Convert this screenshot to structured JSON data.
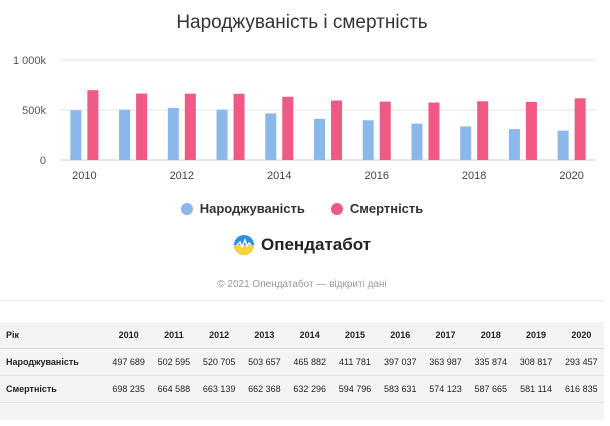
{
  "chart_data": {
    "type": "bar",
    "title": "Народжуваність і смертність",
    "categories": [
      "2010",
      "2011",
      "2012",
      "2013",
      "2014",
      "2015",
      "2016",
      "2017",
      "2018",
      "2019",
      "2020"
    ],
    "x_tick_labels": [
      "2010",
      "2012",
      "2014",
      "2016",
      "2018",
      "2020"
    ],
    "series": [
      {
        "name": "Народжуваність",
        "color": "#8ab8ea",
        "values": [
          497689,
          502595,
          520705,
          503657,
          465882,
          411781,
          397037,
          363987,
          335874,
          308817,
          293457
        ]
      },
      {
        "name": "Смертність",
        "color": "#ee5a84",
        "values": [
          698235,
          664588,
          663139,
          662368,
          632296,
          594796,
          583631,
          574123,
          587665,
          581114,
          616835
        ]
      }
    ],
    "y_ticks": [
      {
        "value": 0,
        "label": "0"
      },
      {
        "value": 500000,
        "label": "500k"
      },
      {
        "value": 1000000,
        "label": "1 000k"
      }
    ],
    "ylim": [
      0,
      1000000
    ],
    "legend_position": "bottom-center",
    "grid": true
  },
  "brand": {
    "name": "Опендатабот",
    "copyright": "© 2021 Опендатабот — відкриті дані"
  },
  "table": {
    "header_label": "Рік",
    "rows": [
      {
        "label": "Народжуваність",
        "cells": [
          "497 689",
          "502 595",
          "520 705",
          "503 657",
          "465 882",
          "411 781",
          "397 037",
          "363 987",
          "335 874",
          "308 817",
          "293 457"
        ]
      },
      {
        "label": "Смертність",
        "cells": [
          "698 235",
          "664 588",
          "663 139",
          "662 368",
          "632 296",
          "594 796",
          "583 631",
          "574 123",
          "587 665",
          "581 114",
          "616 835"
        ]
      }
    ]
  }
}
